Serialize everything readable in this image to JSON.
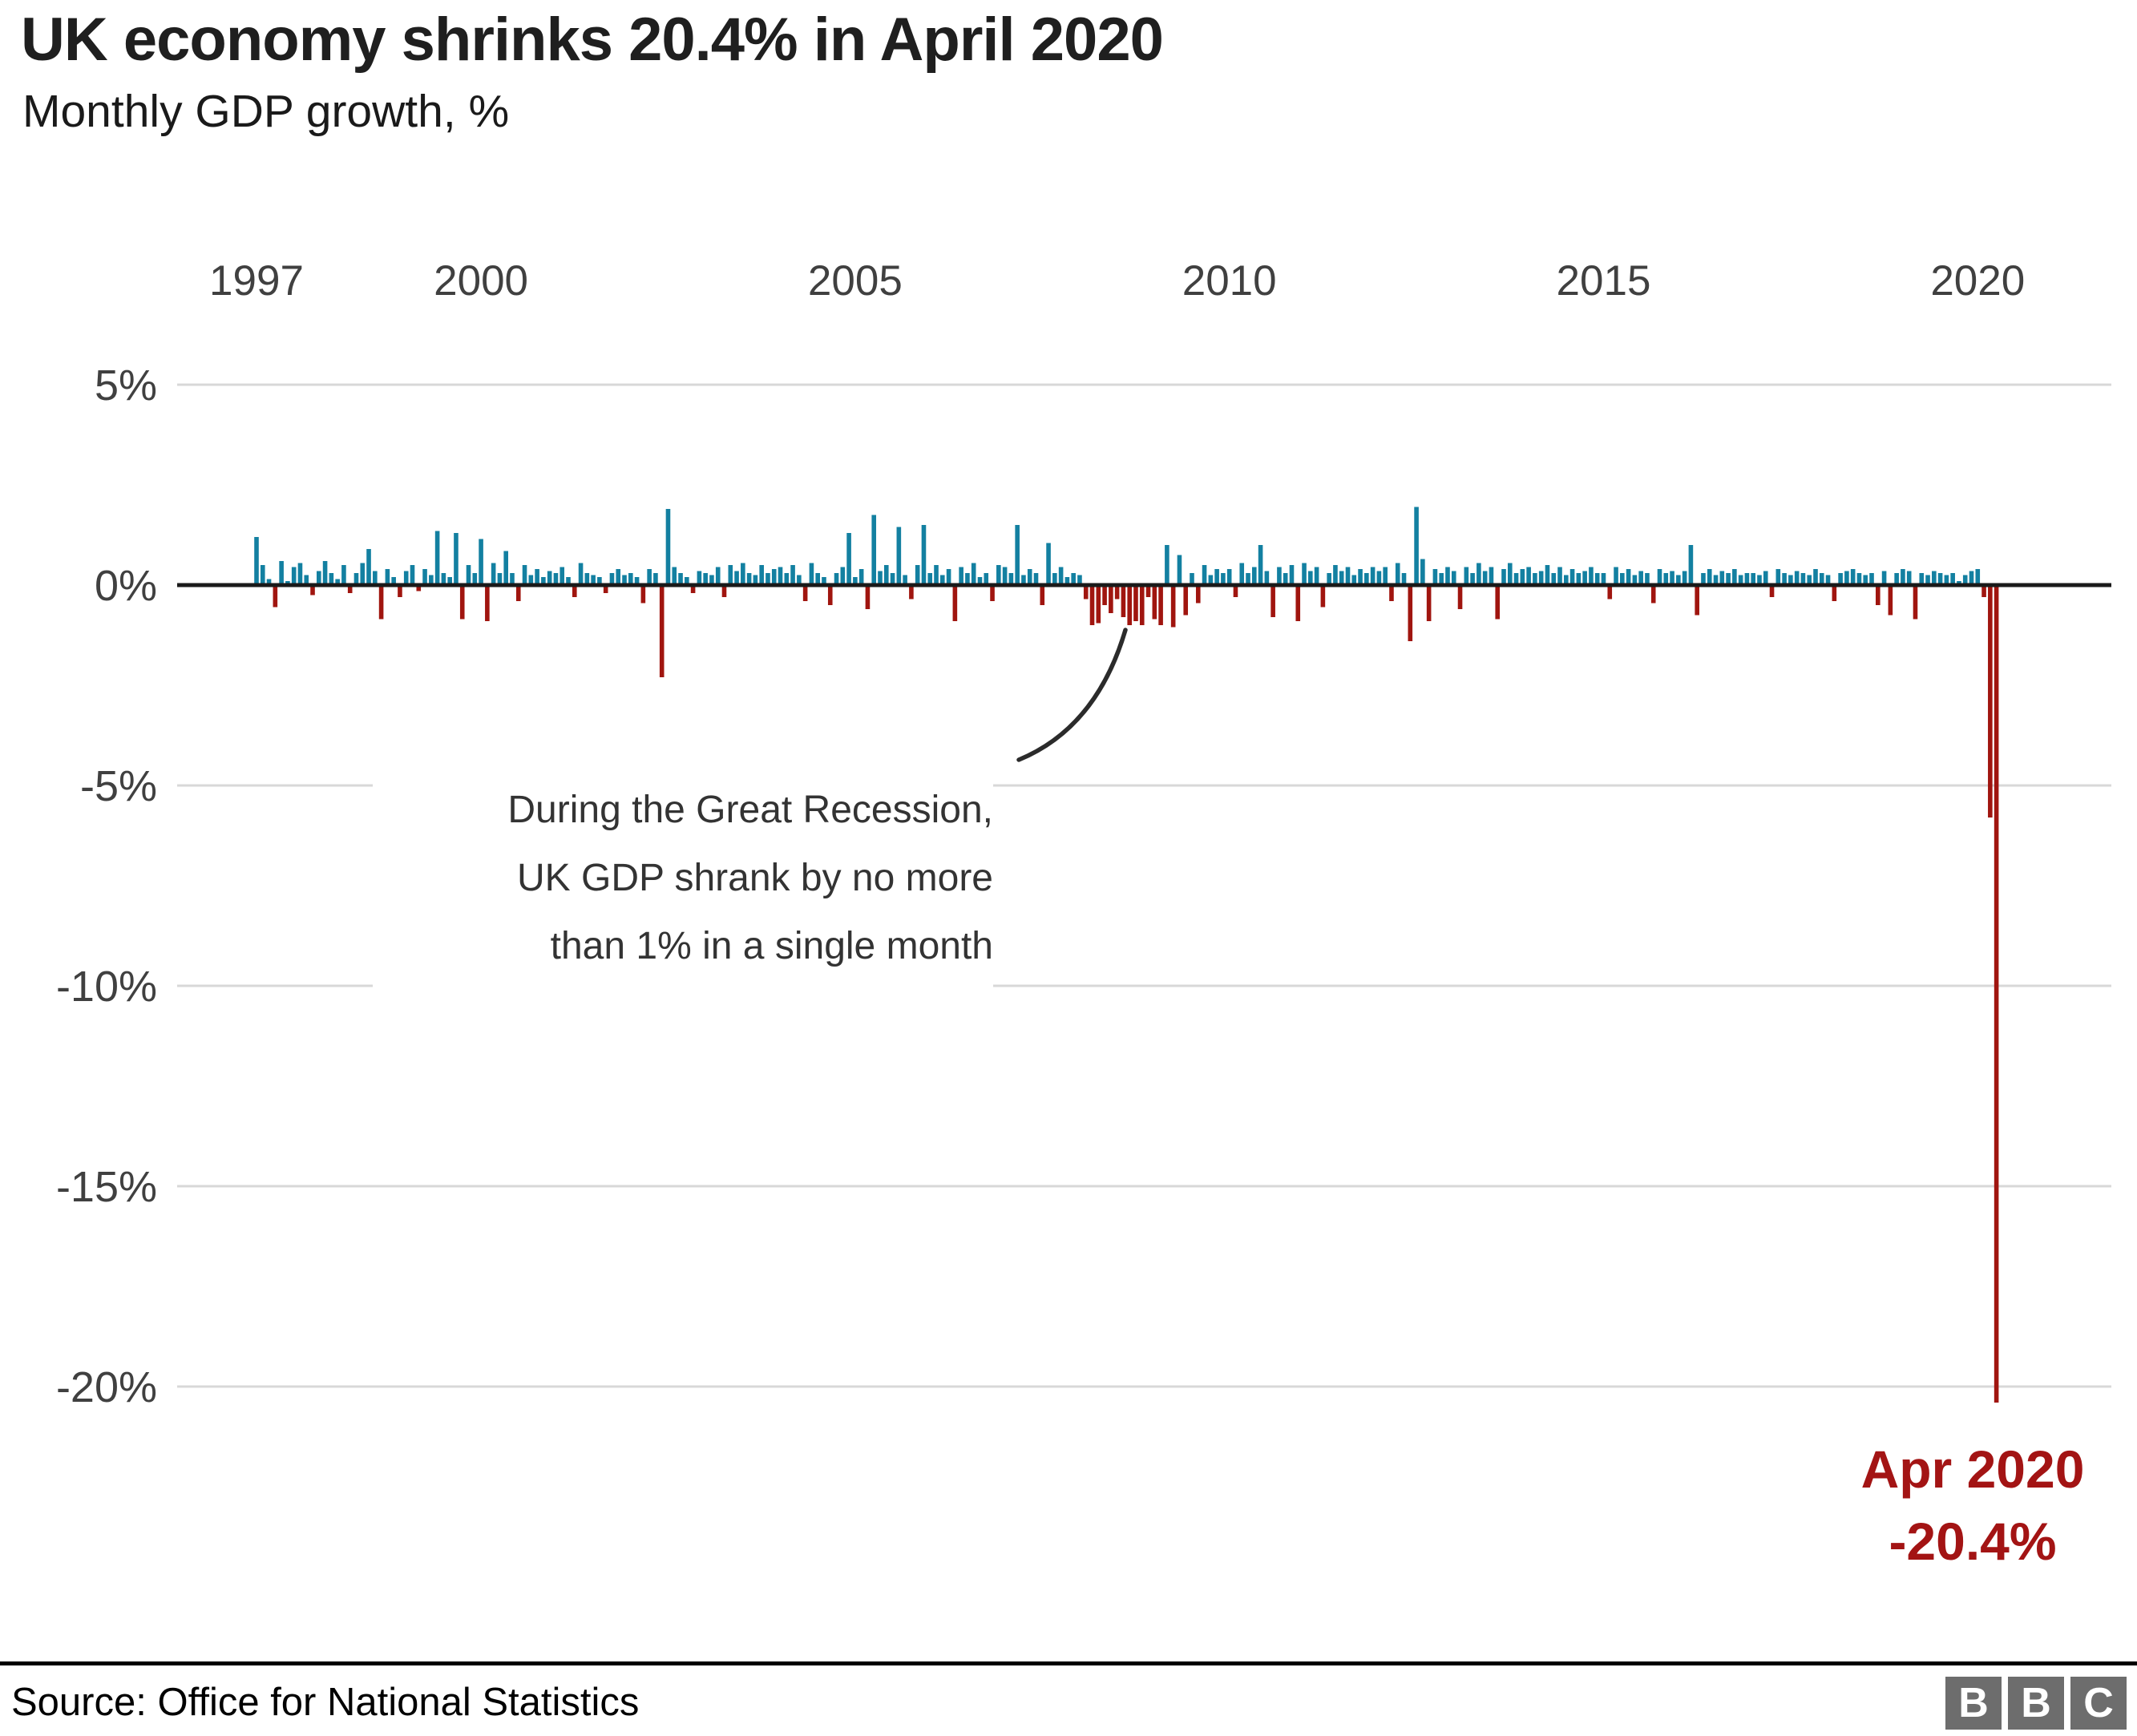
{
  "header": {
    "title": "UK economy shrinks 20.4% in April 2020",
    "subtitle": "Monthly GDP growth, %"
  },
  "chart_data": {
    "type": "bar",
    "title": "UK economy shrinks 20.4% in April 2020",
    "subtitle": "Monthly GDP growth, %",
    "xlabel": "",
    "ylabel": "Monthly GDP growth, %",
    "x_ticks": [
      1997,
      2000,
      2005,
      2010,
      2015,
      2020
    ],
    "y_ticks": [
      {
        "label": "5%",
        "value": 5
      },
      {
        "label": "0%",
        "value": 0
      },
      {
        "label": "-5%",
        "value": -5
      },
      {
        "label": "-10%",
        "value": -10
      },
      {
        "label": "-15%",
        "value": -15
      },
      {
        "label": "-20%",
        "value": -20
      }
    ],
    "ylim": [
      -21,
      5.5
    ],
    "grid": true,
    "start": {
      "year": 1997,
      "month": 1
    },
    "end": {
      "year": 2020,
      "month": 4
    },
    "colors": {
      "positive": "#1380a1",
      "negative": "#a0150f",
      "callout": "#a31414"
    },
    "values": [
      1.2,
      0.5,
      0.15,
      -0.55,
      0.6,
      0.1,
      0.45,
      0.55,
      0.25,
      -0.25,
      0.35,
      0.6,
      0.3,
      0.15,
      0.5,
      -0.2,
      0.3,
      0.55,
      0.9,
      0.35,
      -0.85,
      0.4,
      0.2,
      -0.3,
      0.35,
      0.5,
      -0.15,
      0.4,
      0.25,
      1.35,
      0.3,
      0.2,
      1.3,
      -0.85,
      0.5,
      0.3,
      1.15,
      -0.9,
      0.55,
      0.3,
      0.85,
      0.3,
      -0.4,
      0.5,
      0.25,
      0.4,
      0.2,
      0.35,
      0.3,
      0.45,
      0.2,
      -0.3,
      0.55,
      0.3,
      0.25,
      0.2,
      -0.2,
      0.3,
      0.4,
      0.25,
      0.3,
      0.2,
      -0.45,
      0.4,
      0.3,
      -2.3,
      1.9,
      0.45,
      0.3,
      0.2,
      -0.2,
      0.35,
      0.3,
      0.25,
      0.45,
      -0.3,
      0.5,
      0.35,
      0.55,
      0.3,
      0.25,
      0.5,
      0.3,
      0.4,
      0.45,
      0.3,
      0.5,
      0.25,
      -0.4,
      0.55,
      0.3,
      0.2,
      -0.5,
      0.3,
      0.45,
      1.3,
      0.2,
      0.4,
      -0.6,
      1.75,
      0.35,
      0.5,
      0.3,
      1.45,
      0.25,
      -0.35,
      0.5,
      1.5,
      0.3,
      0.5,
      0.25,
      0.4,
      -0.9,
      0.45,
      0.3,
      0.55,
      0.2,
      0.3,
      -0.4,
      0.5,
      0.45,
      0.3,
      1.5,
      0.25,
      0.4,
      0.3,
      -0.5,
      1.05,
      0.3,
      0.45,
      0.2,
      0.3,
      0.25,
      -0.35,
      -1.0,
      -0.95,
      -0.5,
      -0.7,
      -0.35,
      -0.8,
      -1.0,
      -0.9,
      -1.0,
      -0.3,
      -0.85,
      -1.0,
      1.0,
      -1.05,
      0.75,
      -0.75,
      0.3,
      -0.45,
      0.5,
      0.25,
      0.4,
      0.3,
      0.4,
      -0.3,
      0.55,
      0.3,
      0.45,
      1.0,
      0.35,
      -0.8,
      0.45,
      0.3,
      0.5,
      -0.9,
      0.55,
      0.35,
      0.45,
      -0.55,
      0.3,
      0.5,
      0.35,
      0.45,
      0.25,
      0.4,
      0.3,
      0.45,
      0.35,
      0.45,
      -0.4,
      0.55,
      0.3,
      -1.4,
      1.95,
      0.65,
      -0.9,
      0.4,
      0.3,
      0.45,
      0.35,
      -0.6,
      0.45,
      0.3,
      0.55,
      0.35,
      0.45,
      -0.85,
      0.4,
      0.55,
      0.3,
      0.4,
      0.45,
      0.3,
      0.35,
      0.5,
      0.3,
      0.45,
      0.25,
      0.4,
      0.3,
      0.35,
      0.45,
      0.3,
      0.3,
      -0.35,
      0.45,
      0.3,
      0.4,
      0.25,
      0.35,
      0.3,
      -0.45,
      0.4,
      0.3,
      0.35,
      0.25,
      0.35,
      1.0,
      -0.75,
      0.3,
      0.4,
      0.25,
      0.35,
      0.3,
      0.4,
      0.25,
      0.3,
      0.3,
      0.25,
      0.35,
      -0.3,
      0.4,
      0.3,
      0.25,
      0.35,
      0.3,
      0.25,
      0.4,
      0.3,
      0.25,
      -0.4,
      0.3,
      0.35,
      0.4,
      0.3,
      0.25,
      0.3,
      -0.5,
      0.35,
      -0.75,
      0.3,
      0.4,
      0.35,
      -0.85,
      0.3,
      0.25,
      0.35,
      0.3,
      0.25,
      0.3,
      0.1,
      0.25,
      0.35,
      0.4,
      -0.3,
      -5.8,
      -20.4
    ],
    "annotation": {
      "lines": [
        "During the Great Recession,",
        "UK GDP shrank by no more",
        "than 1% in a single month"
      ]
    },
    "callout": {
      "line1": "Apr 2020",
      "line2": "-20.4%"
    },
    "legend_position": "none"
  },
  "footer": {
    "source": "Source: Office for National Statistics",
    "logo": {
      "letters": [
        "B",
        "B",
        "C"
      ]
    }
  }
}
